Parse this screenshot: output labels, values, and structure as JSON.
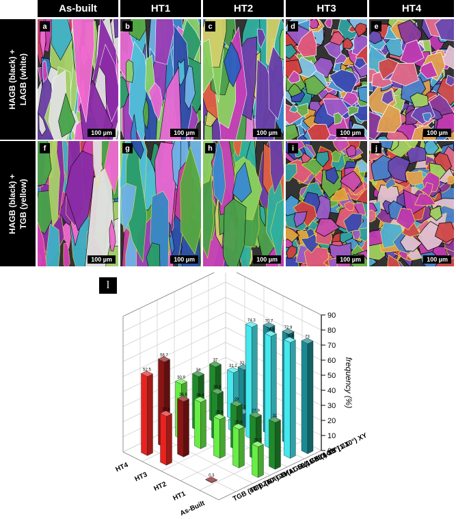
{
  "columns": [
    "As-built",
    "HT1",
    "HT2",
    "HT3",
    "HT4"
  ],
  "rows": [
    {
      "line1": "HAGB (black) +",
      "line2": "LAGB (white)"
    },
    {
      "line1": "HAGB (black) +",
      "line2": "TGB (yellow)"
    }
  ],
  "panel_letters": [
    "a",
    "b",
    "c",
    "d",
    "e",
    "f",
    "g",
    "h",
    "i",
    "j"
  ],
  "scale_bar_text": "100 µm",
  "chart_label": "l",
  "colors": {
    "red": "#e8231f",
    "dark_red": "#8b1414",
    "light_green": "#66ee44",
    "dark_green": "#1e8a2a",
    "cyan": "#44e8ee",
    "teal": "#1a8a92"
  },
  "chart_data": {
    "type": "bar",
    "subtype": "3d-bar",
    "z_axis_label": "frequency (%)",
    "z_ticks": [
      0,
      10,
      20,
      30,
      40,
      50,
      60,
      70,
      80,
      90
    ],
    "zlim": [
      0,
      90
    ],
    "conditions": [
      "HT4",
      "HT3",
      "HT2",
      "HT1",
      "As-Built"
    ],
    "boundary_types": [
      "LAGB (1-10°) XY",
      "LAGB (1-10°) ZX",
      "HAGB (11-59°) XY",
      "HAGB (11-59°) ZX",
      "TGB (60°) XY",
      "TGB (60°) ZX"
    ],
    "series": [
      {
        "name": "TGB (60°) ZX",
        "values": [
          52.5,
          56.7,
          null,
          null,
          0.3
        ]
      },
      {
        "name": "TGB (60°) XY",
        "values": [
          null,
          null,
          null,
          null,
          null
        ]
      },
      {
        "name": "HAGB (11-59°) ZX",
        "values": [
          32.4,
          36.8,
          30.8,
          6.7,
          null
        ]
      },
      {
        "name": "HAGB (11-59°) XY",
        "values": [
          34,
          37,
          31.2,
          21.9,
          25.8
        ]
      },
      {
        "name": "LAGB (1-10°) ZX",
        "values": [
          null,
          null,
          null,
          null,
          null
        ]
      },
      {
        "name": "LAGB (1-10°) XY",
        "values": [
          null,
          null,
          null,
          null,
          null
        ]
      }
    ],
    "data_labels": [
      "52.5",
      "56.7",
      "32.4",
      "36.8",
      "30.9",
      "36.4",
      "34",
      "30.8",
      "37",
      "29",
      "6.7",
      "9.3",
      "31.2",
      "32.2",
      "21.9",
      "25.8",
      "25.6",
      "20.3",
      "27.9",
      "31",
      "74.3",
      "70.7",
      "74.6",
      "72.9",
      "76.8",
      "73"
    ]
  }
}
